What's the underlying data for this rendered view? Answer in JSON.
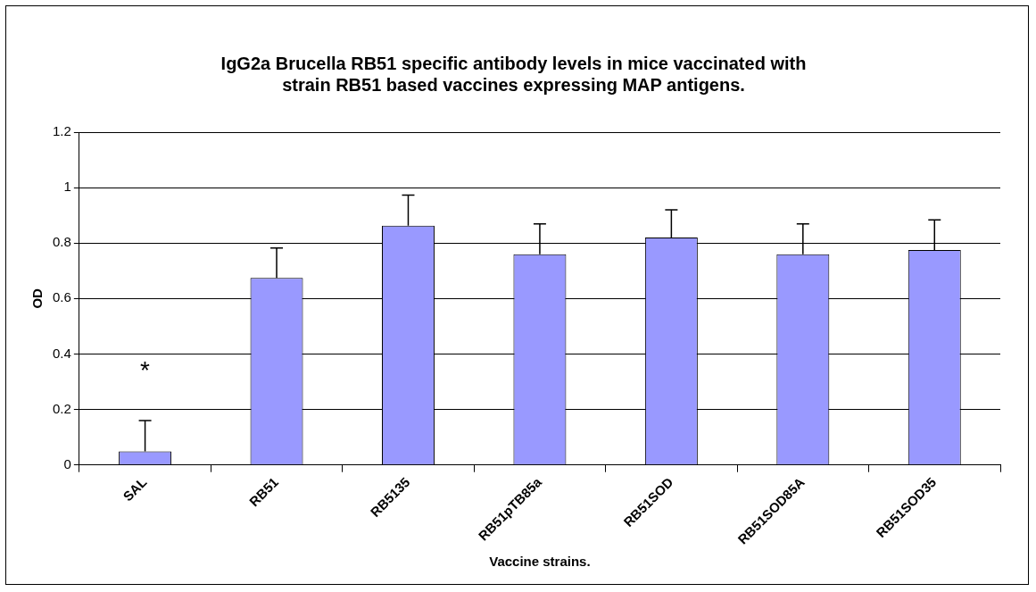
{
  "chart_data": {
    "type": "bar",
    "title": "IgG2a Brucella RB51 specific antibody levels in mice vaccinated with\nstrain RB51 based vaccines expressing MAP antigens.",
    "xlabel": "Vaccine strains.",
    "ylabel": "OD",
    "categories": [
      "SAL",
      "RB51",
      "RB5135",
      "RB51pTB85a",
      "RB51SOD",
      "RB51SOD85A",
      "RB51SOD35"
    ],
    "values": [
      0.049,
      0.674,
      0.863,
      0.76,
      0.82,
      0.76,
      0.775
    ],
    "errors": [
      [
        0.049,
        0.16
      ],
      [
        0.674,
        0.782
      ],
      [
        0.863,
        0.973
      ],
      [
        0.76,
        0.869
      ],
      [
        0.82,
        0.92
      ],
      [
        0.76,
        0.869
      ],
      [
        0.775,
        0.884
      ]
    ],
    "color": "#9999ff",
    "ylim": [
      0,
      1.2
    ],
    "yticks": [
      0,
      0.2,
      0.4,
      0.6,
      0.8,
      1,
      1.2
    ],
    "grid": "y",
    "legend": false,
    "annotations": [
      "*"
    ]
  }
}
